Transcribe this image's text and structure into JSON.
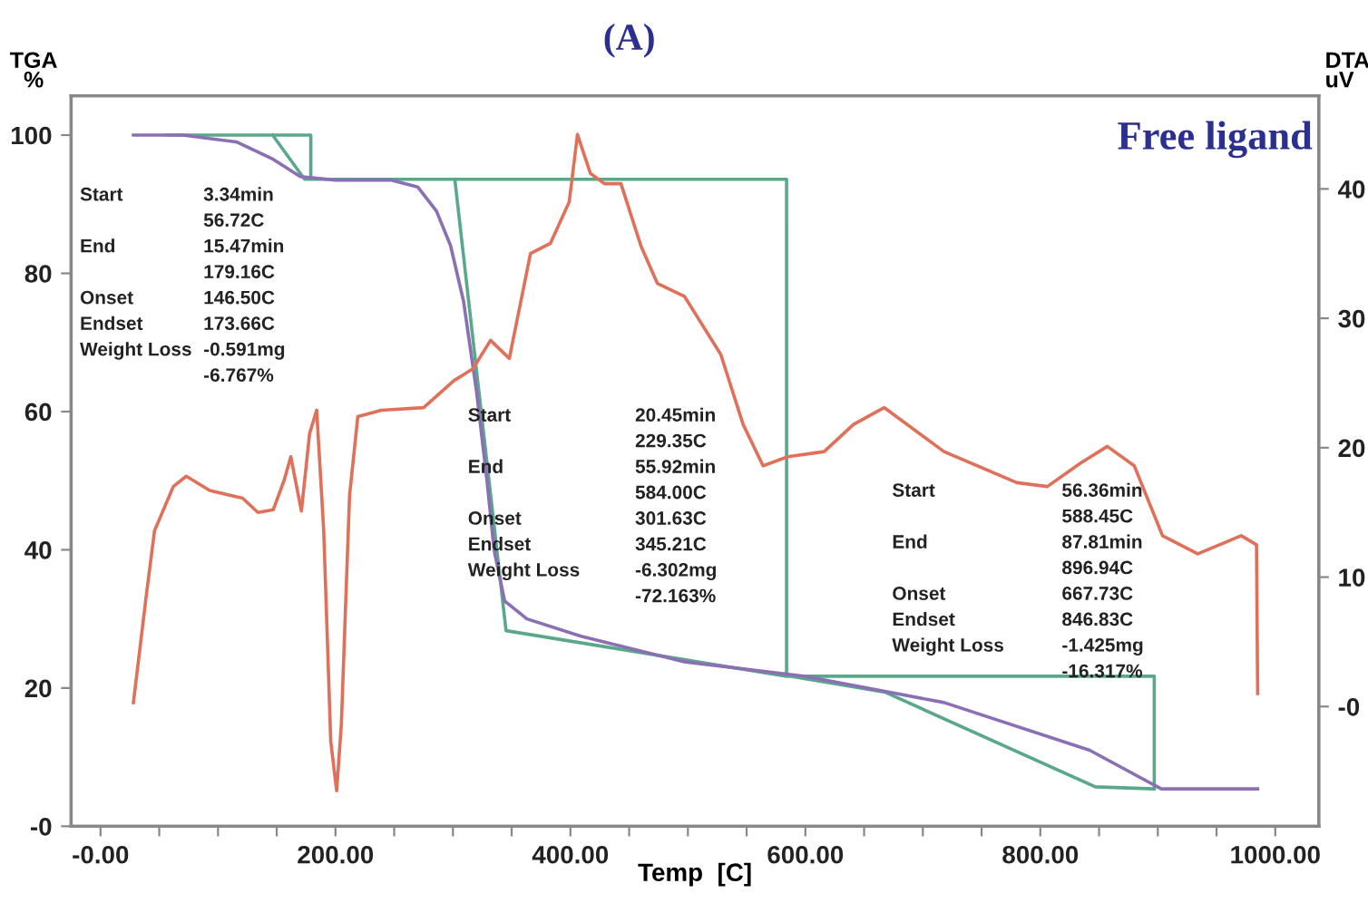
{
  "chart_data": {
    "type": "line",
    "title": "(A)",
    "subtitle": "Free ligand",
    "xlabel": "Temp  [C]",
    "ylabel": "TGA\n%",
    "y2label": "DTA\nuV",
    "xlim": [
      -25,
      1037
    ],
    "xticks": [
      {
        "value": 0,
        "label": "-0.00"
      },
      {
        "value": 50,
        "label": null
      },
      {
        "value": 100,
        "label": null
      },
      {
        "value": 150,
        "label": null
      },
      {
        "value": 200,
        "label": "200.00"
      },
      {
        "value": 250,
        "label": null
      },
      {
        "value": 300,
        "label": null
      },
      {
        "value": 350,
        "label": null
      },
      {
        "value": 400,
        "label": "400.00"
      },
      {
        "value": 450,
        "label": null
      },
      {
        "value": 500,
        "label": null
      },
      {
        "value": 550,
        "label": null
      },
      {
        "value": 600,
        "label": "600.00"
      },
      {
        "value": 650,
        "label": null
      },
      {
        "value": 700,
        "label": null
      },
      {
        "value": 750,
        "label": null
      },
      {
        "value": 800,
        "label": "800.00"
      },
      {
        "value": 850,
        "label": null
      },
      {
        "value": 900,
        "label": null
      },
      {
        "value": 950,
        "label": null
      },
      {
        "value": 1000,
        "label": "1000.00"
      }
    ],
    "ylim": [
      0,
      105.7
    ],
    "yticks": [
      {
        "value": 0,
        "label": "-0"
      },
      20,
      40,
      60,
      80,
      100
    ],
    "y2lim": [
      -9.25,
      47.2
    ],
    "y2ticks": [
      {
        "value": 0,
        "label": "-0"
      },
      10,
      20,
      30,
      40
    ],
    "grid": false,
    "legend": false,
    "annotations": [
      "Start\n\nEnd\n\nOnset\nEndset\nWeight Loss",
      "3.34min\n56.72C\n15.47min\n179.16C\n146.50C\n173.66C\n-0.591mg\n-6.767%",
      "Start\n\nEnd\n\nOnset\nEndset\nWeight Loss",
      "20.45min\n229.35C\n55.92min\n584.00C\n301.63C\n345.21C\n-6.302mg\n-72.163%",
      "Start\n\nEnd\n\nOnset\nEndset\nWeight Loss",
      "56.36min\n588.45C\n87.81min\n896.94C\n667.73C\n846.83C\n-1.425mg\n-16.317%"
    ],
    "series": [
      {
        "axis": "y",
        "color": "#5aa88a",
        "x": [
          57,
          179,
          179,
          null,
          146.5,
          173.7,
          584,
          584,
          null,
          301.6,
          345.2,
          584,
          897,
          897,
          null,
          588,
          667.7,
          846.8,
          897
        ],
        "values": [
          100,
          100,
          93.6,
          null,
          100,
          93.6,
          93.6,
          21.7,
          null,
          93.6,
          28.3,
          21.7,
          21.7,
          5.4,
          null,
          21.7,
          19.4,
          5.7,
          5.4
        ]
      },
      {
        "axis": "y",
        "color": "#8a6fb5",
        "x": [
          28,
          70,
          116,
          147,
          170,
          200,
          247,
          270,
          286,
          298,
          309,
          320,
          329,
          335,
          344,
          363,
          409,
          497,
          600,
          718,
          842,
          903,
          985
        ],
        "values": [
          100,
          100,
          99,
          96.5,
          94,
          93.5,
          93.5,
          92.5,
          89,
          84,
          76,
          63,
          50,
          40,
          32.6,
          30,
          27.5,
          23.8,
          21.7,
          17.9,
          11,
          5.4,
          5.4
        ]
      },
      {
        "axis": "y2",
        "color": "#e0705a",
        "x": [
          28,
          39,
          46,
          62,
          73,
          93,
          121,
          134,
          147,
          156,
          162,
          171,
          178,
          184,
          190,
          196,
          201,
          205,
          212,
          219,
          239,
          275,
          301,
          317,
          332,
          348,
          366,
          383,
          399,
          406,
          417,
          429,
          443,
          460,
          474,
          497,
          528,
          547,
          564,
          585,
          616,
          641,
          667,
          718,
          780,
          806,
          834,
          857,
          880,
          904,
          934,
          971,
          984,
          985
        ],
        "values": [
          0.3,
          8.6,
          13.6,
          17.0,
          17.8,
          16.7,
          16.1,
          15.0,
          15.2,
          17.4,
          19.3,
          15.1,
          21.1,
          22.9,
          13.6,
          -2.7,
          -6.5,
          -1.4,
          16.3,
          22.4,
          22.9,
          23.1,
          25.2,
          26.1,
          28.3,
          26.9,
          35.0,
          35.8,
          39.0,
          44.2,
          41.2,
          40.4,
          40.4,
          35.6,
          32.7,
          31.7,
          27.2,
          21.8,
          18.6,
          19.3,
          19.7,
          21.8,
          23.1,
          19.7,
          17.3,
          17.0,
          18.8,
          20.1,
          18.6,
          13.2,
          11.8,
          13.2,
          12.5,
          1.0
        ]
      }
    ]
  }
}
